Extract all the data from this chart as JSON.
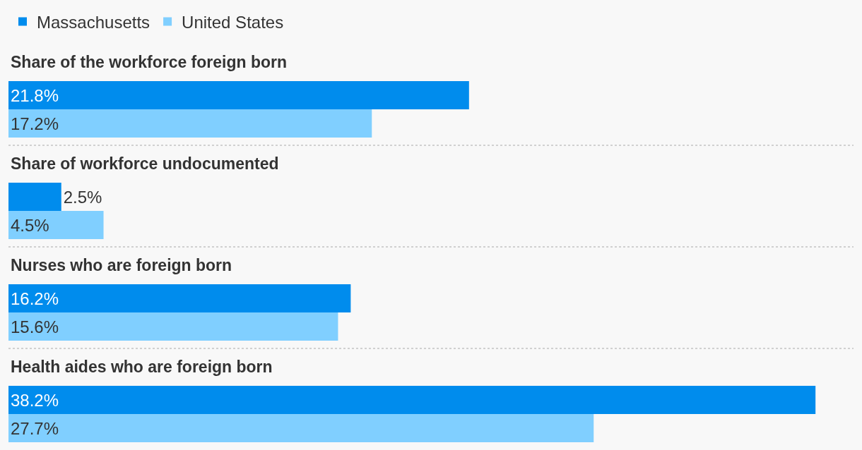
{
  "chart_data": {
    "type": "bar",
    "orientation": "horizontal",
    "categories": [
      "Share of the workforce foreign born",
      "Share of workforce undocumented",
      "Nurses who are foreign born",
      "Health aides who are foreign born"
    ],
    "series": [
      {
        "name": "Massachusetts",
        "color": "#008ced",
        "values": [
          21.8,
          2.5,
          16.2,
          38.2
        ],
        "value_labels": [
          "21.8%",
          "2.5%",
          "16.2%",
          "38.2%"
        ]
      },
      {
        "name": "United States",
        "color": "#80cfff",
        "values": [
          17.2,
          4.5,
          15.6,
          27.7
        ],
        "value_labels": [
          "17.2%",
          "4.5%",
          "15.6%",
          "27.7%"
        ]
      }
    ],
    "xlim": [
      0,
      40
    ],
    "legend": "top left",
    "grid": "y",
    "tick_labels": "y"
  }
}
